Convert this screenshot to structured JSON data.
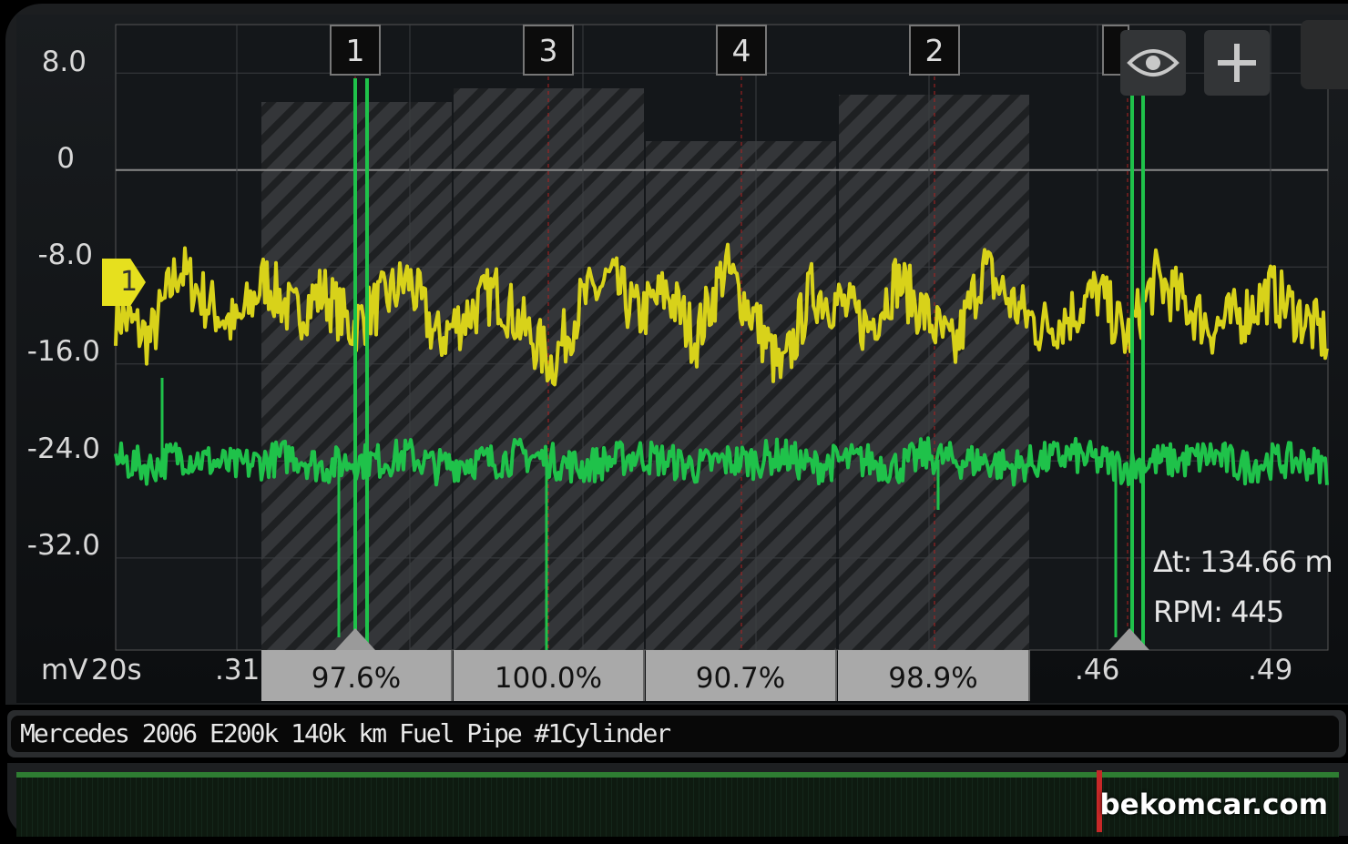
{
  "chart_data": {
    "type": "line",
    "yunit": "mV",
    "xlabel": "20s",
    "y_ticks": [
      "8.0",
      "0",
      "-8.0",
      "-16.0",
      "-24.0",
      "-32.0"
    ],
    "y_tick_values": [
      8,
      0,
      -8,
      -16,
      -24,
      -32
    ],
    "ylim": [
      12,
      -39.6
    ],
    "x_ticks": [
      ".31",
      ".46",
      ".49"
    ],
    "x_tick_values": [
      0.31,
      0.46,
      0.49
    ],
    "xlim": [
      0.289,
      0.5
    ],
    "grid": true,
    "x": [
      0.29,
      0.295,
      0.3,
      0.305,
      0.31,
      0.315,
      0.32,
      0.325,
      0.33,
      0.335,
      0.34,
      0.345,
      0.35,
      0.355,
      0.36,
      0.365,
      0.37,
      0.375,
      0.38,
      0.385,
      0.39,
      0.395,
      0.4,
      0.405,
      0.41,
      0.415,
      0.42,
      0.425,
      0.43,
      0.435,
      0.44,
      0.445,
      0.45,
      0.455,
      0.46,
      0.465,
      0.47,
      0.475,
      0.48,
      0.485,
      0.49,
      0.495,
      0.5
    ],
    "series": [
      {
        "color": "#d8d21a",
        "values": [
          -12,
          -14,
          -8,
          -11,
          -13,
          -9,
          -12,
          -10,
          -13,
          -11,
          -9,
          -14,
          -12,
          -10,
          -13,
          -16,
          -11,
          -9,
          -12,
          -10,
          -14,
          -8,
          -12,
          -17,
          -10,
          -11,
          -13,
          -9,
          -12,
          -15,
          -8,
          -11,
          -13,
          -12,
          -10,
          -14,
          -9,
          -11,
          -13,
          -12,
          -10,
          -12,
          -14
        ]
      },
      {
        "color": "#1fc24a",
        "values": [
          -24,
          -24.5,
          -23.5,
          -24,
          -24.5,
          -24,
          -23.5,
          -24.5,
          -24,
          -24,
          -23.5,
          -24.5,
          -24,
          -24,
          -23.5,
          -24,
          -24.5,
          -24,
          -23.5,
          -24,
          -24.5,
          -24,
          -24,
          -23.5,
          -24.5,
          -24,
          -24,
          -24.5,
          -23.5,
          -24,
          -24,
          -24.5,
          -24,
          -23.5,
          -24,
          -24.5,
          -24,
          -24,
          -23.5,
          -24.5,
          -24,
          -24,
          -24.5
        ]
      }
    ],
    "cylinders": [
      {
        "label": "1",
        "percent": "97.6%"
      },
      {
        "label": "3",
        "percent": "100.0%"
      },
      {
        "label": "4",
        "percent": "90.7%"
      },
      {
        "label": "2",
        "percent": "98.9%"
      }
    ],
    "trigger_marker": "1"
  },
  "readout": {
    "delta_t": "Δt: 134.66 m",
    "rpm": "RPM: 445"
  },
  "toolbar": {
    "eye_icon": "eye-icon",
    "add_icon": "plus-icon"
  },
  "title": "Mercedes 2006 E200k 140k km Fuel Pipe #1Cylinder",
  "watermark": "bekomcar.com"
}
